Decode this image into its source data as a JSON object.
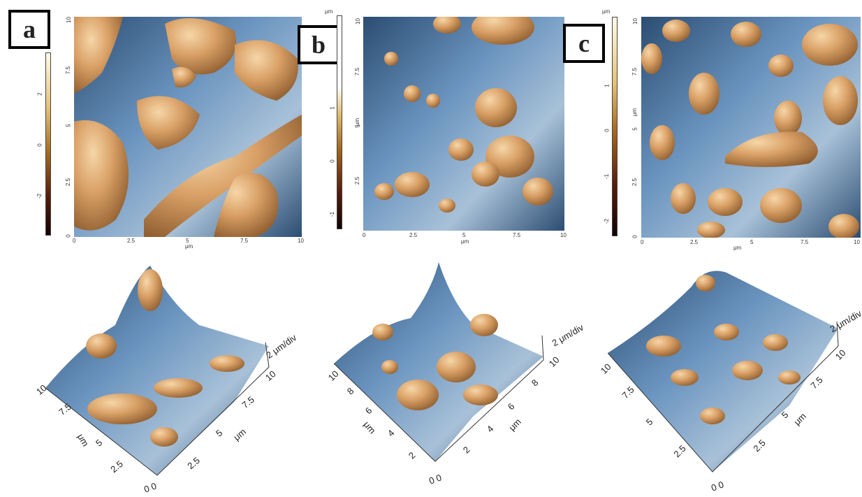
{
  "figure": {
    "panels": [
      {
        "label": "a",
        "colorbar": {
          "unit": "",
          "ticks": [
            "2",
            "0",
            "-2"
          ]
        },
        "map": {
          "x_ticks": [
            "0",
            "2.5",
            "5",
            "7.5",
            "10"
          ],
          "y_ticks": [
            "10",
            "7.5",
            "5",
            "2.5",
            "0"
          ],
          "x_unit": "μm",
          "y_unit": ""
        },
        "view3d": {
          "z_label": "2 μm/div",
          "left_ticks": [
            "10",
            "7.5",
            "5",
            "2.5"
          ],
          "left_unit": "μm",
          "right_ticks": [
            "10",
            "7.5",
            "5",
            "2.5"
          ],
          "right_unit": "μm",
          "origin": "0 0"
        }
      },
      {
        "label": "b",
        "colorbar": {
          "unit": "μm",
          "ticks": [
            "1",
            "0",
            "-1"
          ]
        },
        "map": {
          "x_ticks": [
            "0",
            "2.5",
            "5",
            "7.5",
            "10"
          ],
          "y_ticks": [
            "10",
            "7.5",
            "5",
            "2.5"
          ],
          "x_unit": "μm",
          "y_unit": "μm"
        },
        "view3d": {
          "z_label": "2 μm/div",
          "left_ticks": [
            "10",
            "8",
            "6",
            "4",
            "2"
          ],
          "left_unit": "μm",
          "right_ticks": [
            "10",
            "8",
            "6",
            "4",
            "2"
          ],
          "right_unit": "μm",
          "origin": "0 0"
        }
      },
      {
        "label": "c",
        "colorbar": {
          "unit": "μm",
          "ticks": [
            "1",
            "0",
            "-1",
            "-2"
          ]
        },
        "map": {
          "x_ticks": [
            "0",
            "2.5",
            "5",
            "7.5",
            "10"
          ],
          "y_ticks": [
            "10",
            "7.5",
            "5",
            "2.5",
            "0"
          ],
          "x_unit": "μm",
          "y_unit": "μm"
        },
        "view3d": {
          "z_label": "2 μm/div",
          "left_ticks": [
            "10",
            "7.5",
            "5",
            "2.5"
          ],
          "left_unit": "",
          "right_ticks": [
            "10",
            "7.5",
            "5",
            "2.5"
          ],
          "right_unit": "μm",
          "origin": "0 0"
        }
      }
    ],
    "colors": {
      "tan": "#d9a066",
      "blue": "#4a78aa",
      "dark_blue": "#1e3550",
      "pale": "#e8eef2"
    }
  }
}
